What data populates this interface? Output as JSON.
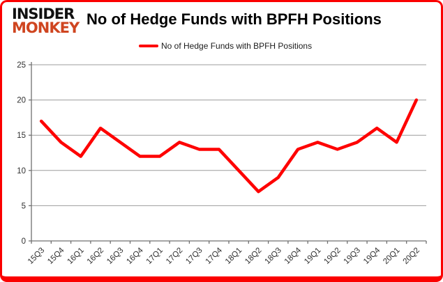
{
  "logo": {
    "line1": "INSIDER",
    "line2": "MONKEY"
  },
  "title": "No of Hedge Funds with BPFH Positions",
  "legend": {
    "label": "No of Hedge Funds with BPFH Positions",
    "swatch_color": "#fe0000"
  },
  "colors": {
    "line": "#fe0000",
    "border": "#fb0000",
    "logo_black": "#111111",
    "logo_red": "#cf4520",
    "grid": "#9c9c9c",
    "axis": "#707070",
    "tick_text": "#303030"
  },
  "chart_data": {
    "type": "line",
    "title": "No of Hedge Funds with BPFH Positions",
    "categories": [
      "15Q3",
      "15Q4",
      "16Q1",
      "16Q2",
      "16Q3",
      "16Q4",
      "17Q1",
      "17Q2",
      "17Q3",
      "17Q4",
      "18Q1",
      "18Q2",
      "18Q3",
      "18Q4",
      "19Q1",
      "19Q2",
      "19Q3",
      "19Q4",
      "20Q1",
      "20Q2"
    ],
    "series": [
      {
        "name": "No of Hedge Funds with BPFH Positions",
        "color": "#fe0000",
        "values": [
          17,
          14,
          12,
          16,
          14,
          12,
          12,
          14,
          13,
          13,
          10,
          7,
          9,
          13,
          14,
          13,
          14,
          16,
          14,
          20
        ]
      }
    ],
    "ylim": [
      0,
      25
    ],
    "yticks": [
      0,
      5,
      10,
      15,
      20,
      25
    ],
    "grid": true,
    "legend_position": "top"
  }
}
